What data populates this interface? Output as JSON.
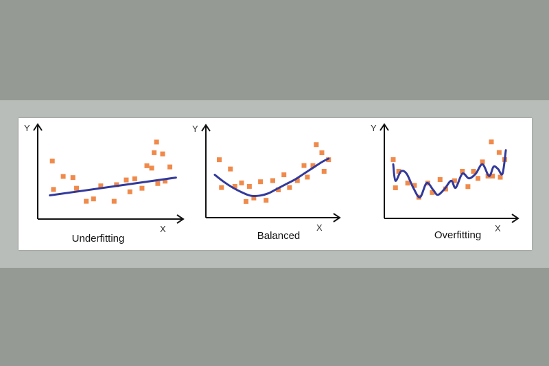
{
  "colors": {
    "background": "#959a95",
    "band": "#b9bdb9",
    "card": "#ffffff",
    "points": "#f08a4b",
    "curve": "#32399b",
    "axis": "#111111"
  },
  "panels": [
    {
      "title": "Underfitting",
      "x_axis_label": "X",
      "y_axis_label": "Y",
      "fit": "linear",
      "points": [
        [
          1.2,
          4.9
        ],
        [
          2.1,
          3.6
        ],
        [
          1.3,
          2.5
        ],
        [
          2.9,
          3.5
        ],
        [
          3.2,
          2.6
        ],
        [
          4.0,
          1.5
        ],
        [
          4.6,
          1.7
        ],
        [
          5.2,
          2.8
        ],
        [
          6.3,
          1.5
        ],
        [
          6.5,
          2.9
        ],
        [
          7.3,
          3.3
        ],
        [
          7.6,
          2.3
        ],
        [
          8.0,
          3.4
        ],
        [
          9.0,
          4.5
        ],
        [
          8.6,
          2.6
        ],
        [
          9.4,
          4.3
        ],
        [
          9.6,
          5.6
        ],
        [
          9.8,
          6.5
        ],
        [
          9.9,
          3.0
        ],
        [
          10.3,
          5.5
        ],
        [
          10.5,
          3.2
        ],
        [
          10.9,
          4.4
        ]
      ],
      "curve": [
        [
          1.0,
          2.0
        ],
        [
          11.4,
          3.5
        ]
      ]
    },
    {
      "title": "Balanced",
      "x_axis_label": "X",
      "y_axis_label": "Y",
      "fit": "quadratic",
      "points": [
        [
          1.2,
          5.0
        ],
        [
          1.4,
          2.6
        ],
        [
          2.2,
          4.2
        ],
        [
          2.6,
          2.7
        ],
        [
          3.2,
          3.0
        ],
        [
          3.6,
          1.4
        ],
        [
          3.9,
          2.7
        ],
        [
          4.3,
          1.7
        ],
        [
          4.9,
          3.1
        ],
        [
          5.4,
          1.5
        ],
        [
          6.0,
          3.2
        ],
        [
          6.5,
          2.4
        ],
        [
          7.0,
          3.7
        ],
        [
          7.5,
          2.6
        ],
        [
          8.2,
          3.2
        ],
        [
          8.8,
          4.5
        ],
        [
          9.1,
          3.5
        ],
        [
          9.6,
          4.5
        ],
        [
          9.9,
          6.3
        ],
        [
          10.4,
          5.6
        ],
        [
          10.6,
          4.0
        ],
        [
          11.0,
          5.0
        ]
      ],
      "curve": [
        [
          0.8,
          3.7
        ],
        [
          1.6,
          3.1
        ],
        [
          2.4,
          2.6
        ],
        [
          3.2,
          2.2
        ],
        [
          4.0,
          1.9
        ],
        [
          4.8,
          1.9
        ],
        [
          5.6,
          2.1
        ],
        [
          6.4,
          2.5
        ],
        [
          7.2,
          2.9
        ],
        [
          8.0,
          3.3
        ],
        [
          8.8,
          3.8
        ],
        [
          9.6,
          4.3
        ],
        [
          10.4,
          4.8
        ],
        [
          11.0,
          5.1
        ]
      ]
    },
    {
      "title": "Overfitting",
      "x_axis_label": "X",
      "y_axis_label": "Y",
      "fit": "high-order",
      "points": [
        [
          0.8,
          5.0
        ],
        [
          1.0,
          2.6
        ],
        [
          1.3,
          4.0
        ],
        [
          2.1,
          3.0
        ],
        [
          2.7,
          2.8
        ],
        [
          3.1,
          1.8
        ],
        [
          3.9,
          3.0
        ],
        [
          4.3,
          2.2
        ],
        [
          5.0,
          3.3
        ],
        [
          5.5,
          2.5
        ],
        [
          6.3,
          3.2
        ],
        [
          7.0,
          4.0
        ],
        [
          7.5,
          2.7
        ],
        [
          8.0,
          4.0
        ],
        [
          8.4,
          3.4
        ],
        [
          8.8,
          4.8
        ],
        [
          9.3,
          3.6
        ],
        [
          9.6,
          6.5
        ],
        [
          9.7,
          3.6
        ],
        [
          10.3,
          5.6
        ],
        [
          10.4,
          3.5
        ],
        [
          10.8,
          5.0
        ]
      ],
      "curve": [
        [
          0.8,
          4.6
        ],
        [
          1.0,
          3.2
        ],
        [
          1.5,
          4.0
        ],
        [
          2.0,
          3.8
        ],
        [
          2.6,
          2.6
        ],
        [
          3.2,
          1.8
        ],
        [
          3.8,
          3.0
        ],
        [
          4.4,
          2.4
        ],
        [
          4.8,
          2.0
        ],
        [
          5.4,
          2.5
        ],
        [
          6.0,
          3.2
        ],
        [
          6.4,
          2.6
        ],
        [
          7.0,
          3.8
        ],
        [
          7.6,
          3.4
        ],
        [
          8.2,
          3.8
        ],
        [
          8.8,
          4.6
        ],
        [
          9.4,
          3.6
        ],
        [
          9.8,
          4.4
        ],
        [
          10.2,
          4.2
        ],
        [
          10.6,
          3.8
        ],
        [
          10.9,
          5.8
        ]
      ]
    }
  ]
}
